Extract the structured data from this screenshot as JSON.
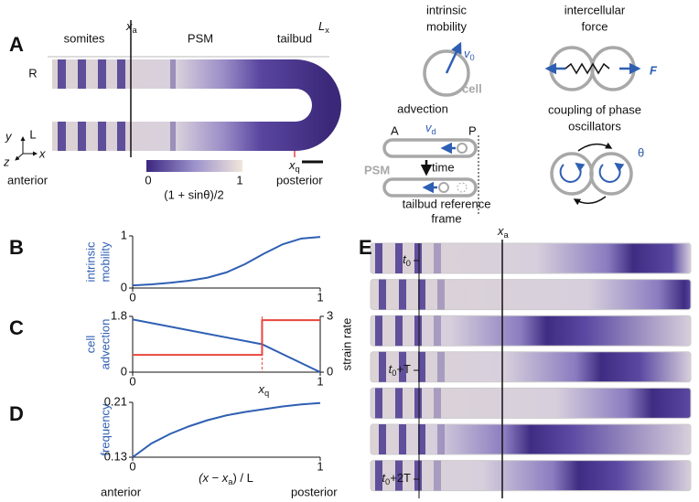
{
  "panel_a": {
    "label": "A",
    "regions": [
      "somites",
      "PSM",
      "tailbud"
    ],
    "xa": {
      "main": "x",
      "sub": "a"
    },
    "lx": {
      "main": "L",
      "sub": "x"
    },
    "sides": [
      "R",
      "L"
    ],
    "axes": [
      "y",
      "z",
      "x"
    ],
    "anterior": "anterior",
    "posterior": "posterior",
    "xq": {
      "main": "x",
      "sub": "q"
    },
    "colorbar": {
      "ticks": [
        "0",
        "1"
      ],
      "label": "(1 + sinθ)/2"
    }
  },
  "schematics": {
    "mobility": {
      "title": [
        "intrinsic",
        "mobility"
      ],
      "v": {
        "main": "v",
        "sub": "0"
      },
      "cell": "cell"
    },
    "force": {
      "title": [
        "intercellular",
        "force"
      ],
      "symbol": "F"
    },
    "advection": {
      "title": "advection",
      "a": "A",
      "p": "P",
      "v": {
        "main": "v",
        "sub": "d"
      },
      "psm": "PSM",
      "time": "time",
      "frame": [
        "tailbud reference",
        "frame"
      ]
    },
    "coupling": {
      "title": [
        "coupling of phase",
        "oscillators"
      ],
      "theta": "θ"
    }
  },
  "chart_data": [
    {
      "type": "line",
      "label": "B",
      "ylabel": [
        "intrinsic",
        "mobility"
      ],
      "x": [
        0,
        0.1,
        0.2,
        0.3,
        0.4,
        0.5,
        0.6,
        0.7,
        0.8,
        0.9,
        1
      ],
      "series": [
        {
          "color": "#2f5fb3",
          "values": [
            0.05,
            0.07,
            0.1,
            0.14,
            0.2,
            0.3,
            0.46,
            0.66,
            0.84,
            0.95,
            0.98
          ]
        }
      ],
      "xlim": [
        0,
        1
      ],
      "ylim": [
        0,
        1
      ],
      "xticks": [
        0,
        1
      ],
      "yticks": [
        0,
        1
      ]
    },
    {
      "type": "line",
      "label": "C",
      "ylabel": [
        "cell",
        "advection"
      ],
      "y2label": "strain rate",
      "x": [
        0,
        0.69,
        0.69,
        1
      ],
      "series": [
        {
          "color": "#2f5fb3",
          "values": [
            1.7,
            0.9,
            0.9,
            0
          ]
        },
        {
          "color": "#e8463f",
          "axis": "y2",
          "values": [
            0.93,
            0.93,
            2.8,
            2.8
          ]
        }
      ],
      "markers": [
        {
          "x": 0.69,
          "label": {
            "main": "x",
            "sub": "q"
          },
          "color": "#e8463f"
        }
      ],
      "xlim": [
        0,
        1
      ],
      "ylim": [
        0,
        1.8
      ],
      "y2lim": [
        0,
        3
      ],
      "xticks": [
        0,
        1
      ],
      "yticks": [
        0,
        1.8
      ],
      "y2ticks": [
        0,
        3
      ]
    },
    {
      "type": "line",
      "label": "D",
      "ylabel": [
        "frequency"
      ],
      "x": [
        0,
        0.1,
        0.2,
        0.3,
        0.4,
        0.5,
        0.6,
        0.7,
        0.8,
        0.9,
        1
      ],
      "series": [
        {
          "color": "#2f5fb3",
          "values": [
            0.13,
            0.15,
            0.164,
            0.175,
            0.184,
            0.191,
            0.196,
            0.2,
            0.204,
            0.207,
            0.209
          ]
        }
      ],
      "xlim": [
        0,
        1
      ],
      "ylim": [
        0.13,
        0.21
      ],
      "xticks": [
        0,
        1
      ],
      "yticks": [
        0.13,
        0.21
      ],
      "xlabel": {
        "main": "(x − x",
        "sub": "a",
        "post": ") / L"
      },
      "xlabel_ends": [
        "anterior",
        "posterior"
      ]
    }
  ],
  "panel_e": {
    "label": "E",
    "xa": {
      "main": "x",
      "sub": "a"
    },
    "times": [
      {
        "main": "t",
        "sub": "0"
      },
      {
        "main": "t",
        "sub": "0",
        "post": "+T"
      },
      {
        "main": "t",
        "sub": "0",
        "post": "+2T"
      }
    ]
  }
}
